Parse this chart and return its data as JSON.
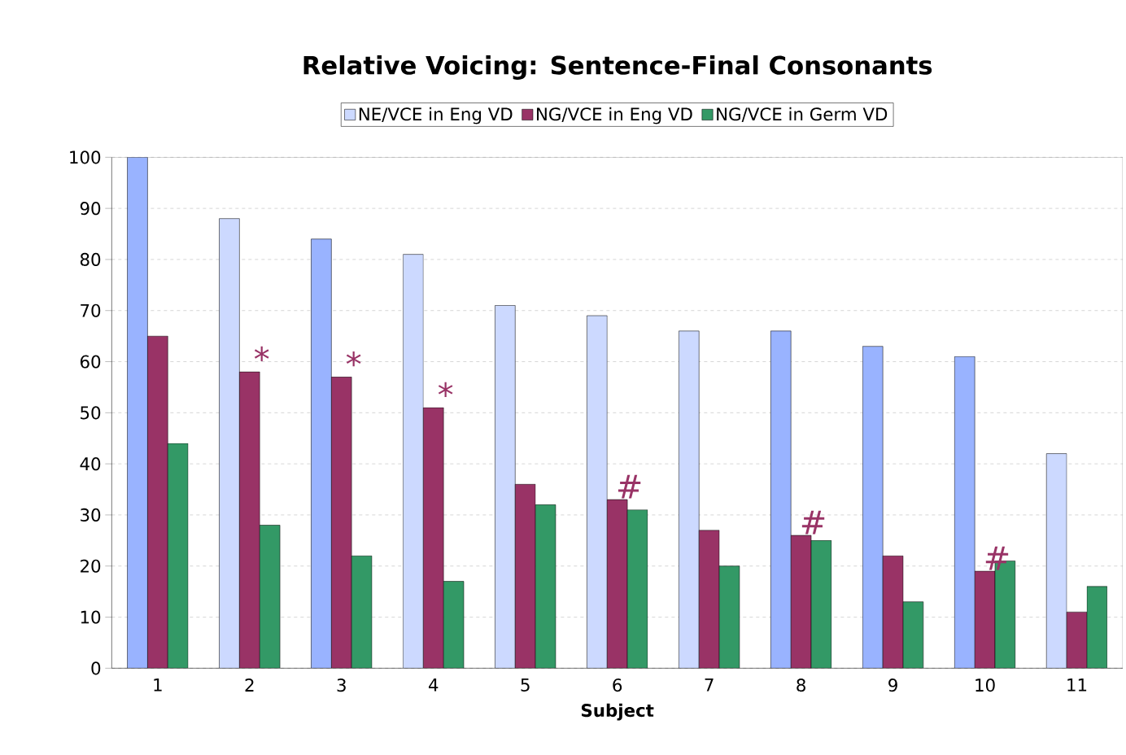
{
  "chart_data": {
    "type": "bar",
    "title": "Relative Voicing: Sentence-Final Consonants",
    "xlabel": "Subject",
    "categories": [
      "1",
      "2",
      "3",
      "4",
      "5",
      "6",
      "7",
      "8",
      "9",
      "10",
      "11"
    ],
    "series": [
      {
        "name": "NE/VCE in Eng VD",
        "color": "#ccd9ff",
        "colors": [
          "#99b3ff",
          "#ccd9ff",
          "#99b3ff",
          "#ccd9ff",
          "#ccd9ff",
          "#ccd9ff",
          "#ccd9ff",
          "#99b3ff",
          "#99b3ff",
          "#99b3ff",
          "#ccd9ff"
        ],
        "values": [
          100,
          88,
          84,
          81,
          71,
          69,
          66,
          66,
          63,
          61,
          42
        ]
      },
      {
        "name": "NG/VCE in Eng VD",
        "color": "#993366",
        "values": [
          65,
          58,
          57,
          51,
          36,
          33,
          27,
          26,
          22,
          19,
          11
        ]
      },
      {
        "name": "NG/VCE in Germ VD",
        "color": "#339966",
        "values": [
          44,
          28,
          22,
          17,
          32,
          31,
          20,
          25,
          13,
          21,
          16
        ]
      }
    ],
    "annotations": [
      {
        "text": "*",
        "x": "2",
        "y": 58
      },
      {
        "text": "*",
        "x": "3",
        "y": 57
      },
      {
        "text": "*",
        "x": "4",
        "y": 51
      },
      {
        "text": "#",
        "x": "6",
        "y": 33
      },
      {
        "text": "#",
        "x": "8",
        "y": 26
      },
      {
        "text": "#",
        "x": "10",
        "y": 19
      }
    ],
    "ylim": [
      0,
      100
    ],
    "yticks": [
      0,
      10,
      20,
      30,
      40,
      50,
      60,
      70,
      80,
      90,
      100
    ],
    "grid": "y",
    "legend": "top"
  }
}
